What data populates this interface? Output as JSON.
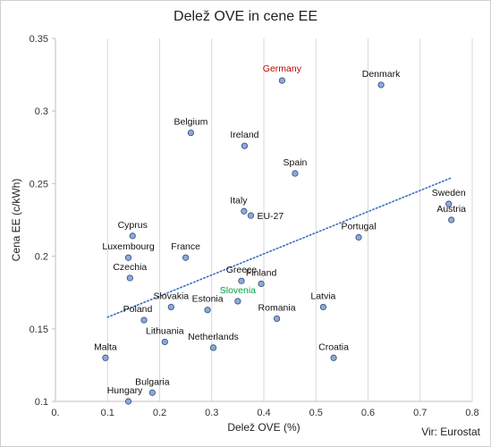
{
  "chart_data": {
    "type": "scatter",
    "title": "Delež OVE in cene EE",
    "xlabel": "Delež OVE (%)",
    "ylabel": "Cena EE (c/kWh)",
    "source": "Vir: Eurostat",
    "xlim": [
      0,
      0.8
    ],
    "ylim": [
      0.1,
      0.35
    ],
    "x_ticks": [
      "0.",
      "0.1",
      "0.2",
      "0.3",
      "0.4",
      "0.5",
      "0.6",
      "0.7",
      "0.8"
    ],
    "y_ticks": [
      "0.1",
      "0.15",
      "0.2",
      "0.25",
      "0.3",
      "0.35"
    ],
    "grid": "vertical",
    "trendline": {
      "style": "dotted",
      "color": "#3a6fc4",
      "x": [
        0.1,
        0.76
      ],
      "y": [
        0.158,
        0.254
      ]
    },
    "marker_color": "#8ea9d8",
    "marker_edge": "#2f4b7c",
    "highlight_colors": {
      "Germany": "#c00000",
      "Slovenia": "#00a040"
    },
    "points": [
      {
        "label": "Germany",
        "x": 0.435,
        "y": 0.321
      },
      {
        "label": "Denmark",
        "x": 0.625,
        "y": 0.318
      },
      {
        "label": "Belgium",
        "x": 0.26,
        "y": 0.285
      },
      {
        "label": "Ireland",
        "x": 0.363,
        "y": 0.276
      },
      {
        "label": "Spain",
        "x": 0.46,
        "y": 0.257
      },
      {
        "label": "Sweden",
        "x": 0.755,
        "y": 0.236
      },
      {
        "label": "Austria",
        "x": 0.76,
        "y": 0.225
      },
      {
        "label": "Italy",
        "x": 0.362,
        "y": 0.231
      },
      {
        "label": "EU-27",
        "x": 0.375,
        "y": 0.228
      },
      {
        "label": "Cyprus",
        "x": 0.148,
        "y": 0.214
      },
      {
        "label": "Portugal",
        "x": 0.582,
        "y": 0.213
      },
      {
        "label": "Luxembourg",
        "x": 0.14,
        "y": 0.199
      },
      {
        "label": "France",
        "x": 0.25,
        "y": 0.199
      },
      {
        "label": "Czechia",
        "x": 0.143,
        "y": 0.185
      },
      {
        "label": "Greece",
        "x": 0.357,
        "y": 0.183
      },
      {
        "label": "Finland",
        "x": 0.395,
        "y": 0.181
      },
      {
        "label": "Slovenia",
        "x": 0.35,
        "y": 0.169
      },
      {
        "label": "Slovakia",
        "x": 0.222,
        "y": 0.165
      },
      {
        "label": "Estonia",
        "x": 0.292,
        "y": 0.163
      },
      {
        "label": "Latvia",
        "x": 0.514,
        "y": 0.165
      },
      {
        "label": "Poland",
        "x": 0.17,
        "y": 0.156
      },
      {
        "label": "Romania",
        "x": 0.425,
        "y": 0.157
      },
      {
        "label": "Lithuania",
        "x": 0.21,
        "y": 0.141
      },
      {
        "label": "Netherlands",
        "x": 0.303,
        "y": 0.137
      },
      {
        "label": "Malta",
        "x": 0.096,
        "y": 0.13
      },
      {
        "label": "Croatia",
        "x": 0.534,
        "y": 0.13
      },
      {
        "label": "Bulgaria",
        "x": 0.186,
        "y": 0.106
      },
      {
        "label": "Hungary",
        "x": 0.14,
        "y": 0.1
      }
    ]
  }
}
